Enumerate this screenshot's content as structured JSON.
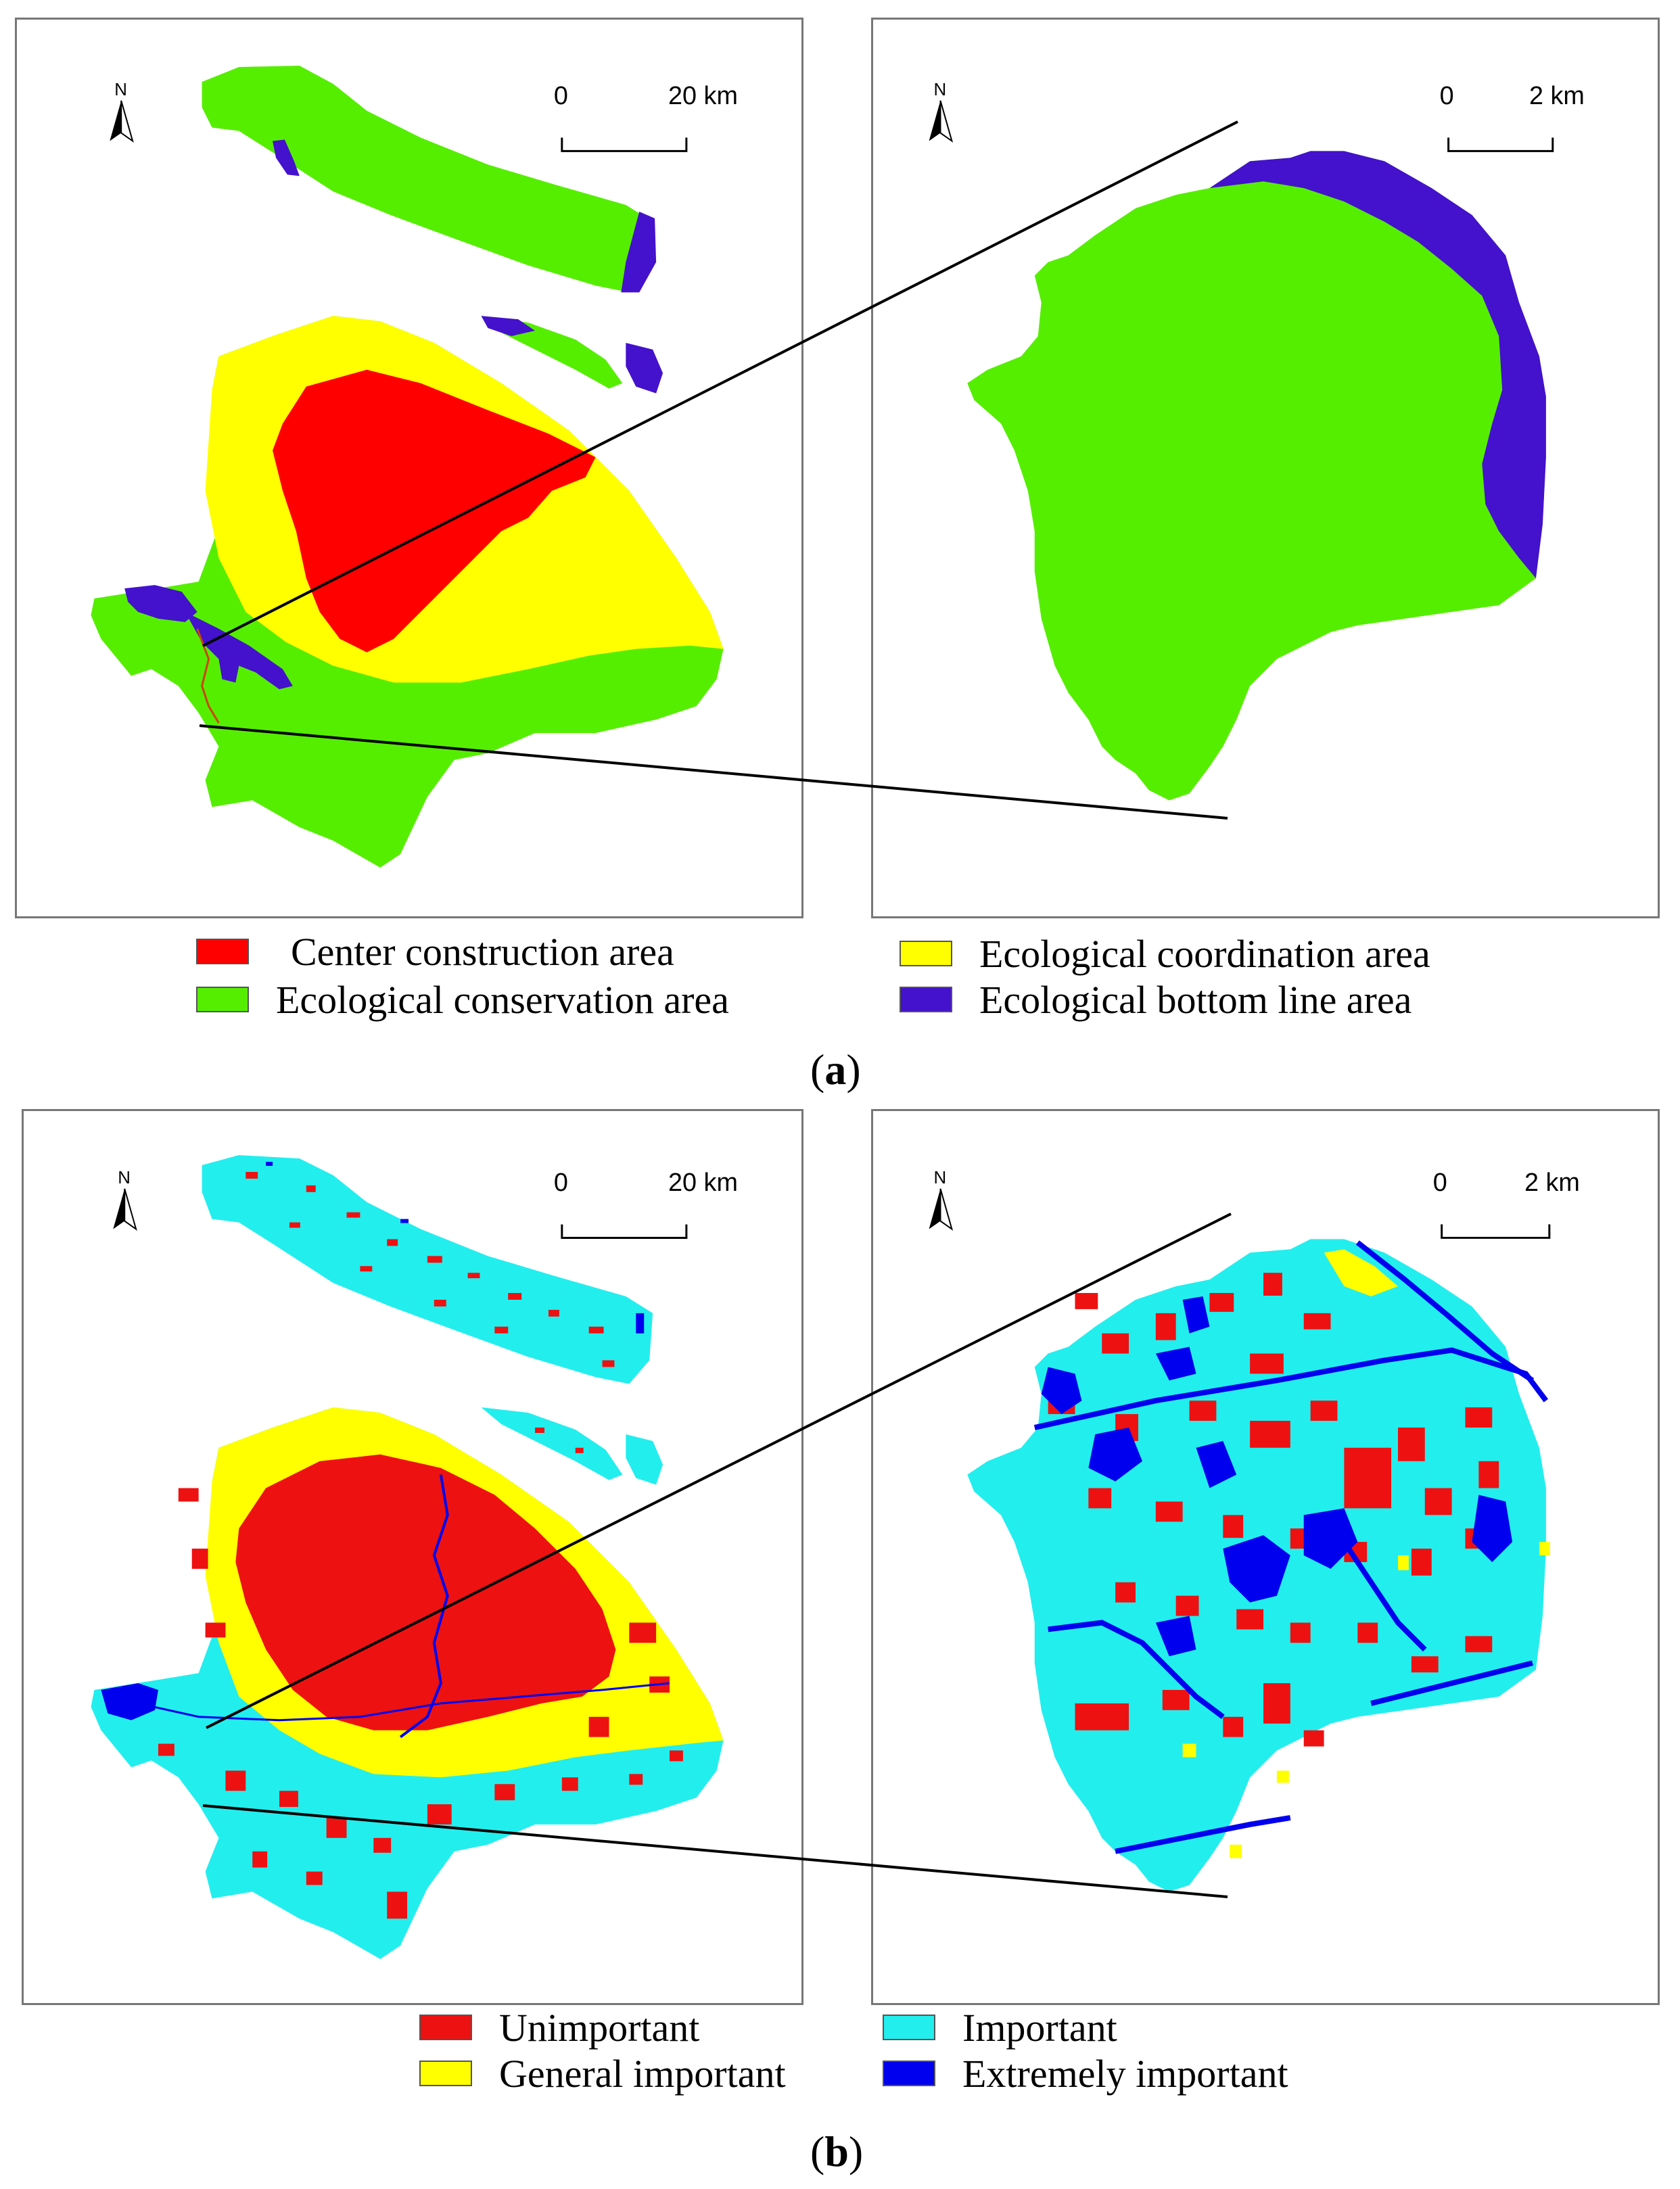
{
  "panel_a": {
    "label_open": "(",
    "label_letter": "a",
    "label_close": ")",
    "left_map": {
      "north": "N",
      "scale_0": "0",
      "scale_end": "20 km"
    },
    "right_map": {
      "north": "N",
      "scale_0": "0",
      "scale_end": "2 km"
    },
    "legend": [
      {
        "label": "Center construction area",
        "color": "#ff0000"
      },
      {
        "label": "Ecological coordination area",
        "color": "#ffff00"
      },
      {
        "label": "Ecological conservation area",
        "color": "#55ee00"
      },
      {
        "label": "Ecological bottom line area",
        "color": "#4411cc"
      }
    ]
  },
  "panel_b": {
    "label_open": "(",
    "label_letter": "b",
    "label_close": ")",
    "left_map": {
      "north": "N",
      "scale_0": "0",
      "scale_end": "20 km"
    },
    "right_map": {
      "north": "N",
      "scale_0": "0",
      "scale_end": "2 km"
    },
    "legend": [
      {
        "label": "Unimportant",
        "color": "#ee1111"
      },
      {
        "label": "Important",
        "color": "#22eeee"
      },
      {
        "label": "General important",
        "color": "#ffff00"
      },
      {
        "label": "Extremely important",
        "color": "#0000ee"
      }
    ]
  }
}
